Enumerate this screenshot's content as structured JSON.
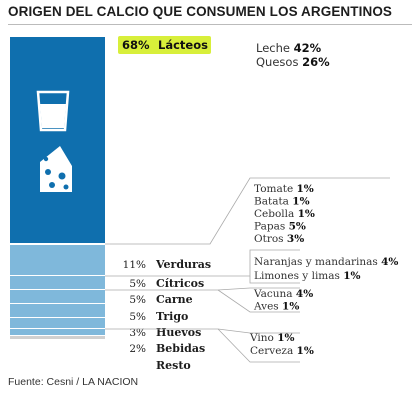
{
  "title": "ORIGEN  DEL CALCIO QUE CONSUMEN LOS ARGENTINOS",
  "source": "Fuente: Cesni / LA NACION",
  "colors": {
    "dairy": "#0f6fae",
    "light": "#7fb8db",
    "gray": "#d0d0d0",
    "highlight": "#d8ef3a",
    "line": "#aaaaaa"
  },
  "icons": [
    "milk-glass-icon",
    "cheese-icon"
  ],
  "chart_data": {
    "type": "stacked-bar",
    "categories": [
      {
        "key": "lacteos",
        "pct_label": "68%",
        "name": "Lácteos",
        "value": 68,
        "highlight": true,
        "details": [
          {
            "name": "Leche",
            "pct": "42%",
            "value": 42
          },
          {
            "name": "Quesos",
            "pct": "26%",
            "value": 26
          }
        ]
      },
      {
        "key": "verduras",
        "pct_label": "11%",
        "name": "Verduras",
        "value": 11,
        "details": [
          {
            "name": "Tomate",
            "pct": "1%",
            "value": 1
          },
          {
            "name": "Batata",
            "pct": "1%",
            "value": 1
          },
          {
            "name": "Cebolla",
            "pct": "1%",
            "value": 1
          },
          {
            "name": "Papas",
            "pct": "5%",
            "value": 5
          },
          {
            "name": "Otros",
            "pct": "3%",
            "value": 3
          }
        ]
      },
      {
        "key": "citricos",
        "pct_label": "5%",
        "name": "Cítricos",
        "value": 5,
        "details": [
          {
            "name": "Naranjas y mandarinas",
            "pct": "4%",
            "value": 4
          },
          {
            "name": "Limones y limas",
            "pct": "1%",
            "value": 1
          }
        ]
      },
      {
        "key": "carne",
        "pct_label": "5%",
        "name": "Carne",
        "value": 5,
        "details": [
          {
            "name": "Vacuna",
            "pct": "4%",
            "value": 4
          },
          {
            "name": "Aves",
            "pct": "1%",
            "value": 1
          }
        ]
      },
      {
        "key": "trigo",
        "pct_label": "5%",
        "name": "Trigo",
        "value": 5,
        "details": []
      },
      {
        "key": "huevos",
        "pct_label": "3%",
        "name": "Huevos",
        "value": 3,
        "details": []
      },
      {
        "key": "bebidas",
        "pct_label": "2%",
        "name": "Bebidas",
        "value": 2,
        "details": [
          {
            "name": "Vino",
            "pct": "1%",
            "value": 1
          },
          {
            "name": "Cerveza",
            "pct": "1%",
            "value": 1
          }
        ]
      },
      {
        "key": "resto",
        "pct_label": "",
        "name": "Resto",
        "value": 1,
        "details": []
      }
    ]
  }
}
